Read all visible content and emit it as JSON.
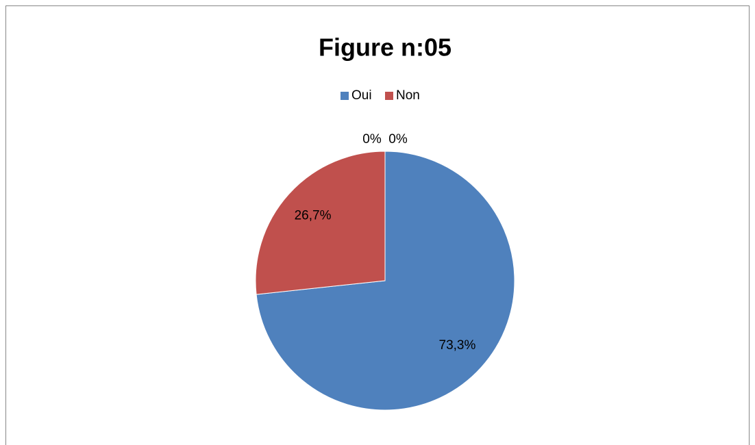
{
  "chart_data": {
    "type": "pie",
    "title": "Figure n:05",
    "categories": [
      "Oui",
      "Non",
      null,
      null
    ],
    "values": [
      73.3,
      26.7,
      0,
      0
    ],
    "value_labels": [
      "73,3%",
      "26,7%",
      "0%",
      "0%"
    ],
    "colors": [
      "#4f81bd",
      "#c0504d",
      "#9bbb59",
      "#8064a2"
    ],
    "legend": "top"
  }
}
